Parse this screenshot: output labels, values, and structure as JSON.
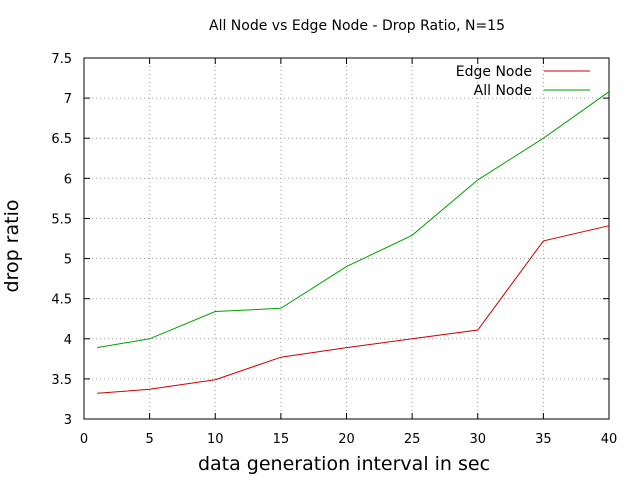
{
  "chart_data": {
    "type": "line",
    "title": "All Node vs Edge Node - Drop Ratio, N=15",
    "xlabel": "data generation interval in sec",
    "ylabel": "drop ratio",
    "xlim": [
      0,
      40
    ],
    "ylim": [
      3,
      7.5
    ],
    "xticks": [
      0,
      5,
      10,
      15,
      20,
      25,
      30,
      35,
      40
    ],
    "xtick_labels": [
      "0",
      "5",
      "10",
      "15",
      "20",
      "25",
      "30",
      "35",
      "40"
    ],
    "yticks": [
      3,
      3.5,
      4,
      4.5,
      5,
      5.5,
      6,
      6.5,
      7,
      7.5
    ],
    "ytick_labels": [
      "3",
      "3.5",
      "4",
      "4.5",
      "5",
      "5.5",
      "6",
      "6.5",
      "7",
      "7.5"
    ],
    "grid": true,
    "legend_position": "top-right",
    "x": [
      1,
      5,
      10,
      15,
      20,
      25,
      30,
      35,
      40
    ],
    "series": [
      {
        "name": "Edge Node",
        "color": "#cc0000",
        "values": [
          3.32,
          3.37,
          3.49,
          3.77,
          3.89,
          4.0,
          4.11,
          5.22,
          5.41
        ]
      },
      {
        "name": "All Node",
        "color": "#00a000",
        "values": [
          3.89,
          4.0,
          4.34,
          4.38,
          4.9,
          5.29,
          5.98,
          6.5,
          7.08
        ]
      }
    ]
  }
}
